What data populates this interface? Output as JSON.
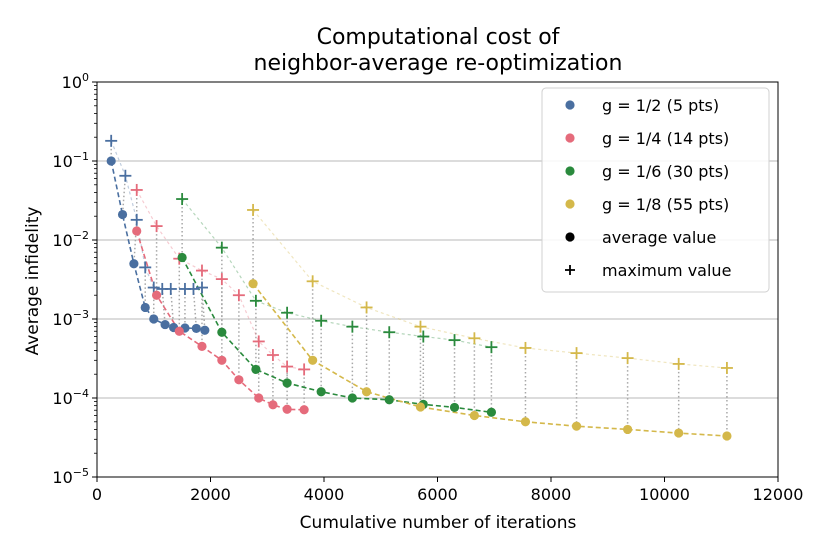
{
  "chart_data": {
    "type": "scatter",
    "title": [
      "Computational cost of",
      "neighbor-average re-optimization"
    ],
    "xlabel": "Cumulative number of iterations",
    "ylabel": "Average infidelity",
    "xlim": [
      0,
      12000
    ],
    "ylim_log10": [
      -5,
      0
    ],
    "y_scale": "log",
    "x_ticks": [
      0,
      2000,
      4000,
      6000,
      8000,
      10000,
      12000
    ],
    "y_ticks": [
      {
        "base": "10",
        "exp": "0",
        "value": 1
      },
      {
        "base": "10",
        "exp": "-1",
        "value": 0.1
      },
      {
        "base": "10",
        "exp": "-2",
        "value": 0.01
      },
      {
        "base": "10",
        "exp": "-3",
        "value": 0.001
      },
      {
        "base": "10",
        "exp": "-4",
        "value": 0.0001
      },
      {
        "base": "10",
        "exp": "-5",
        "value": 1e-05
      }
    ],
    "grid": "horizontal",
    "legend_position": "top-right",
    "legend_marker_labels": [
      "average value",
      "maximum value"
    ],
    "series": [
      {
        "name": "g = 1/2 (5 pts)",
        "color": "#4a6fa0",
        "avg": [
          [
            250,
            0.1
          ],
          [
            450,
            0.021
          ],
          [
            650,
            0.005
          ],
          [
            850,
            0.0014
          ],
          [
            1000,
            0.001
          ],
          [
            1200,
            0.00085
          ],
          [
            1350,
            0.00078
          ],
          [
            1550,
            0.00077
          ],
          [
            1750,
            0.00076
          ],
          [
            1900,
            0.00072
          ]
        ],
        "max": [
          [
            250,
            0.18
          ],
          [
            500,
            0.065
          ],
          [
            700,
            0.018
          ],
          [
            850,
            0.0045
          ],
          [
            1000,
            0.0025
          ],
          [
            1150,
            0.0024
          ],
          [
            1300,
            0.0024
          ],
          [
            1550,
            0.0024
          ],
          [
            1700,
            0.0024
          ],
          [
            1850,
            0.0025
          ]
        ]
      },
      {
        "name": "g = 1/4 (14 pts)",
        "color": "#e56b7b",
        "avg": [
          [
            700,
            0.013
          ],
          [
            1050,
            0.002
          ],
          [
            1450,
            0.0007
          ],
          [
            1850,
            0.00045
          ],
          [
            2200,
            0.0003
          ],
          [
            2500,
            0.00017
          ],
          [
            2850,
            0.0001
          ],
          [
            3100,
            8.2e-05
          ],
          [
            3350,
            7.2e-05
          ],
          [
            3650,
            7.1e-05
          ]
        ],
        "max": [
          [
            700,
            0.043
          ],
          [
            1050,
            0.015
          ],
          [
            1450,
            0.0058
          ],
          [
            1850,
            0.0041
          ],
          [
            2200,
            0.0032
          ],
          [
            2500,
            0.002
          ],
          [
            2850,
            0.00052
          ],
          [
            3100,
            0.00035
          ],
          [
            3350,
            0.00025
          ],
          [
            3650,
            0.00023
          ]
        ]
      },
      {
        "name": "g = 1/6 (30 pts)",
        "color": "#2a8a3d",
        "avg": [
          [
            1500,
            0.006
          ],
          [
            2200,
            0.00068
          ],
          [
            2800,
            0.00023
          ],
          [
            3350,
            0.000155
          ],
          [
            3950,
            0.00012
          ],
          [
            4500,
            0.0001
          ],
          [
            5150,
            9.5e-05
          ],
          [
            5750,
            8.3e-05
          ],
          [
            6300,
            7.6e-05
          ],
          [
            6950,
            6.6e-05
          ]
        ],
        "max": [
          [
            1500,
            0.033
          ],
          [
            2200,
            0.008
          ],
          [
            2800,
            0.0017
          ],
          [
            3350,
            0.0012
          ],
          [
            3950,
            0.00095
          ],
          [
            4500,
            0.0008
          ],
          [
            5150,
            0.00068
          ],
          [
            5750,
            0.0006
          ],
          [
            6300,
            0.00054
          ],
          [
            6950,
            0.00044
          ]
        ]
      },
      {
        "name": "g = 1/8 (55 pts)",
        "color": "#d4b84a",
        "avg": [
          [
            2750,
            0.0028
          ],
          [
            3800,
            0.0003
          ],
          [
            4750,
            0.00012
          ],
          [
            5700,
            7.7e-05
          ],
          [
            6650,
            6e-05
          ],
          [
            7550,
            5e-05
          ],
          [
            8450,
            4.4e-05
          ],
          [
            9350,
            4e-05
          ],
          [
            10250,
            3.6e-05
          ],
          [
            11100,
            3.3e-05
          ]
        ],
        "max": [
          [
            2750,
            0.024
          ],
          [
            3800,
            0.003
          ],
          [
            4750,
            0.0014
          ],
          [
            5700,
            0.0008
          ],
          [
            6650,
            0.00057
          ],
          [
            7550,
            0.00043
          ],
          [
            8450,
            0.00037
          ],
          [
            9350,
            0.00032
          ],
          [
            10250,
            0.00027
          ],
          [
            11100,
            0.00024
          ]
        ]
      }
    ]
  }
}
